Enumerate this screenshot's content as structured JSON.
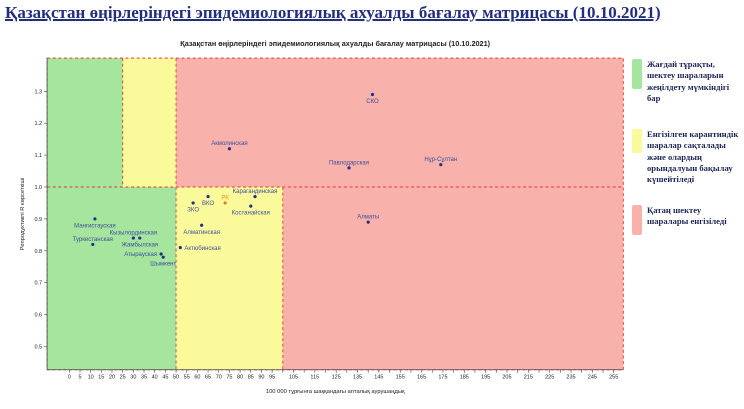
{
  "page": {
    "title": "Қазақстан өңірлеріндегі эпидемиологиялық ахуалды бағалау матрицасы  (10.10.2021)"
  },
  "colors": {
    "header_text": "#232e7d",
    "zone_green": "#a6e59e",
    "zone_yellow": "#fbfa9a",
    "zone_red": "#f8b1ab",
    "dashed_line": "#e43b2c",
    "point": "#23308a",
    "point_label": "#3d4f9b",
    "highlight_point": "#e07f1d",
    "highlight_label": "#e8960f",
    "axis": "#444444",
    "tick_label": "#222222"
  },
  "chart_data": {
    "type": "scatter",
    "title": "Қазақстан өңірлеріндегі эпидемиологиялық ахуалды бағалау матрицасы  (10.10.2021)",
    "xlabel": "100 000 тұрғынға шаққандағы апталық аурушаңдық",
    "ylabel": "Репродуктивті R көрсеткіші",
    "xlim": [
      -10.4,
      259.5
    ],
    "ylim": [
      0.427,
      1.404
    ],
    "x_tick_step": 5,
    "x_tick_labels": [
      0,
      5,
      10,
      15,
      20,
      25,
      30,
      35,
      40,
      45,
      50,
      55,
      60,
      65,
      70,
      75,
      80,
      85,
      90,
      95,
      105,
      115,
      125,
      135,
      145,
      155,
      165,
      175,
      185,
      195,
      205,
      215,
      225,
      235,
      245,
      255
    ],
    "y_tick_labels": [
      0.5,
      0.6,
      0.7,
      0.8,
      0.9,
      1.0,
      1.1,
      1.2,
      1.3
    ],
    "r_threshold": 1.0,
    "grid": false,
    "legend_position": "right",
    "zones": {
      "above_threshold": [
        {
          "color": "green",
          "x0": -10.4,
          "x1": 25
        },
        {
          "color": "yellow",
          "x0": 25,
          "x1": 50
        },
        {
          "color": "red",
          "x0": 50,
          "x1": 259.5
        }
      ],
      "below_threshold": [
        {
          "color": "green",
          "x0": -10.4,
          "x1": 50
        },
        {
          "color": "yellow",
          "x0": 50,
          "x1": 100
        },
        {
          "color": "red",
          "x0": 100,
          "x1": 259.5
        }
      ]
    },
    "dashed_lines": [
      {
        "orient": "h",
        "at": 1.0,
        "span": "full"
      },
      {
        "orient": "v",
        "at": 25,
        "span": "above"
      },
      {
        "orient": "v",
        "at": 50,
        "span": "full"
      },
      {
        "orient": "v",
        "at": 100,
        "span": "below"
      }
    ],
    "points": [
      {
        "name": "Мангистауская",
        "x": 12,
        "r": 0.9,
        "label": "below"
      },
      {
        "name": "Туркестанская",
        "x": 11,
        "r": 0.82,
        "label": "above"
      },
      {
        "name": "Кызылординская",
        "x": 30,
        "r": 0.84,
        "label": "above"
      },
      {
        "name": "Жамбылская",
        "x": 33,
        "r": 0.84,
        "label": "below"
      },
      {
        "name": "Атырауская",
        "x": 43,
        "r": 0.79,
        "label": "left"
      },
      {
        "name": "Шымкент",
        "x": 44,
        "r": 0.78,
        "label": "below"
      },
      {
        "name": "Актюбинская",
        "x": 52,
        "r": 0.81,
        "label": "right"
      },
      {
        "name": "Алматинская",
        "x": 62,
        "r": 0.88,
        "label": "below"
      },
      {
        "name": "ЗКО",
        "x": 58,
        "r": 0.95,
        "label": "below"
      },
      {
        "name": "ВКО",
        "x": 65,
        "r": 0.97,
        "label": "below"
      },
      {
        "name": "РК",
        "x": 73,
        "r": 0.95,
        "label": "above",
        "highlight": true
      },
      {
        "name": "Карагандинская",
        "x": 87,
        "r": 0.97,
        "label": "above"
      },
      {
        "name": "Костанайская",
        "x": 85,
        "r": 0.94,
        "label": "below"
      },
      {
        "name": "Акмолинская",
        "x": 75,
        "r": 1.12,
        "label": "above"
      },
      {
        "name": "Павлодарская",
        "x": 131,
        "r": 1.06,
        "label": "above"
      },
      {
        "name": "Нұр-Сұлтан",
        "x": 174,
        "r": 1.07,
        "label": "above"
      },
      {
        "name": "СКО",
        "x": 142,
        "r": 1.29,
        "label": "below"
      },
      {
        "name": "Алматы",
        "x": 140,
        "r": 0.89,
        "label": "above"
      }
    ]
  },
  "legend": {
    "items": [
      {
        "color": "#a6e59e",
        "text": "Жағдай тұрақты, шектеу шараларын жеңілдету мүмкіндігі бар"
      },
      {
        "color": "#fbfa9a",
        "text": "Енгізілген карантиндік шаралар сақталады және олардың орындалуын бақылау күшейтіледі"
      },
      {
        "color": "#f8b1ab",
        "text": "Қатаң шектеу шаралары енгізіледі"
      }
    ]
  }
}
